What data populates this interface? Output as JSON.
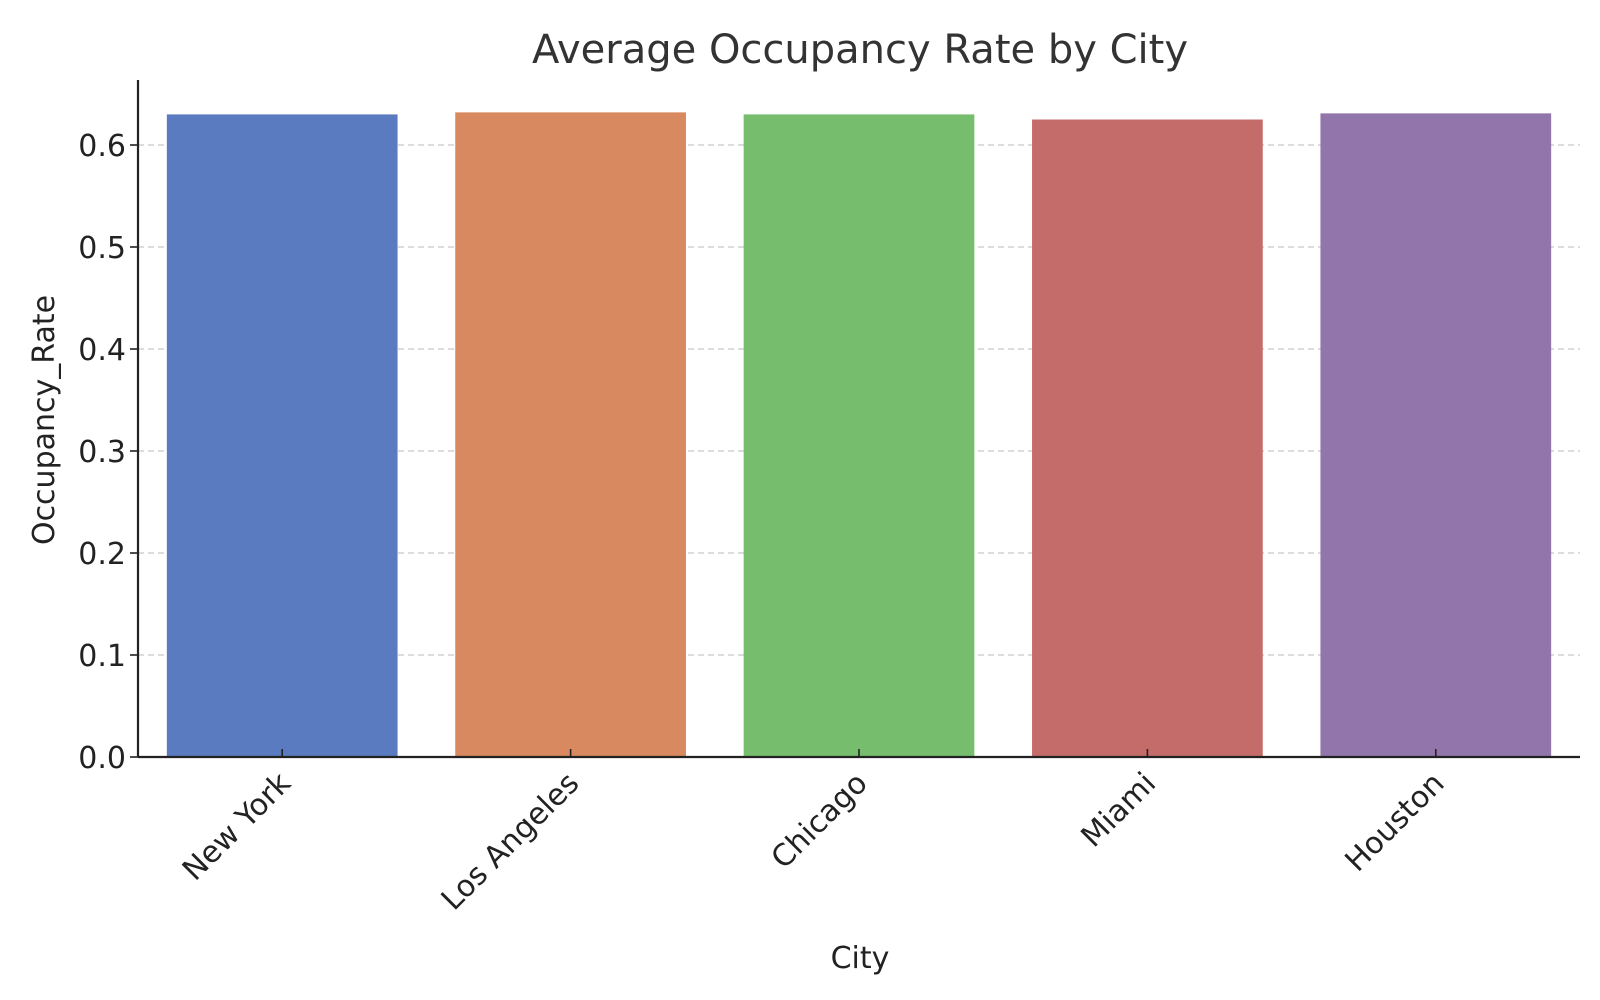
{
  "chart_data": {
    "type": "bar",
    "title": "Average Occupancy Rate by City",
    "xlabel": "City",
    "ylabel": "Occupancy_Rate",
    "categories": [
      "New York",
      "Los Angeles",
      "Chicago",
      "Miami",
      "Houston"
    ],
    "values": [
      0.63,
      0.632,
      0.63,
      0.625,
      0.631
    ],
    "colors": [
      "#5a7bbf",
      "#d9895f",
      "#76be6e",
      "#c46c6a",
      "#9175ab"
    ],
    "ylim": [
      0,
      0.66
    ],
    "yticks": [
      0.0,
      0.1,
      0.2,
      0.3,
      0.4,
      0.5,
      0.6
    ],
    "ytick_labels": [
      "0.0",
      "0.1",
      "0.2",
      "0.3",
      "0.4",
      "0.5",
      "0.6"
    ],
    "grid": "y-dashed",
    "legend": "none"
  }
}
